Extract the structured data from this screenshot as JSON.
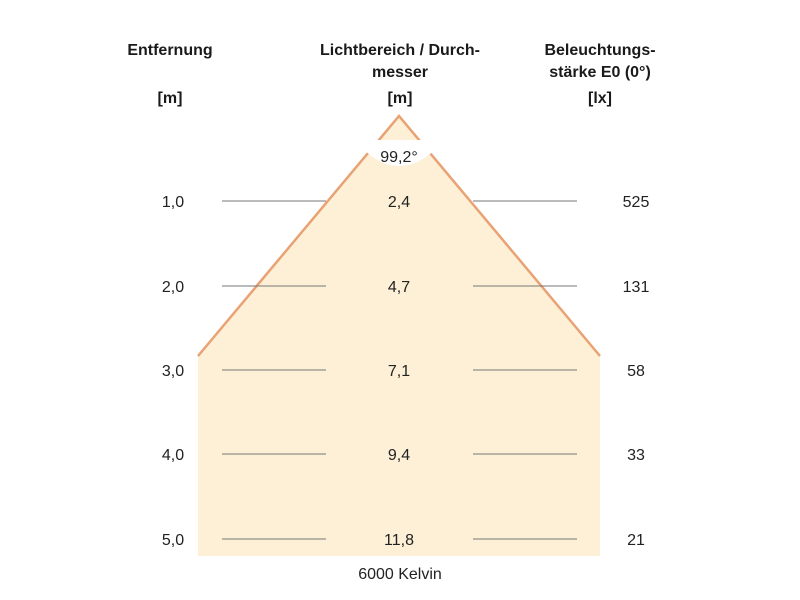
{
  "header": {
    "distance_title": "Entfernung",
    "distance_unit": "[m]",
    "beam_title": "Lichtbereich / Durch-\nmesser",
    "beam_unit": "[m]",
    "lux_title": "Beleuchtungs-\nstärke E0 (0°)",
    "lux_unit": "[lx]"
  },
  "beam_angle_label": "99,2°",
  "footer_label": "6000 Kelvin",
  "colors": {
    "beam_fill": "#fdf0d6",
    "beam_edge": "#e8a273",
    "grid_line": "#777777"
  },
  "chart_data": {
    "type": "table",
    "title": "",
    "beam_angle_deg": 99.2,
    "rows": [
      {
        "distance": "1,0",
        "diameter": "2,4",
        "illuminance": "525"
      },
      {
        "distance": "2,0",
        "diameter": "4,7",
        "illuminance": "131"
      },
      {
        "distance": "3,0",
        "diameter": "7,1",
        "illuminance": "58"
      },
      {
        "distance": "4,0",
        "diameter": "9,4",
        "illuminance": "33"
      },
      {
        "distance": "5,0",
        "diameter": "11,8",
        "illuminance": "21"
      }
    ]
  }
}
